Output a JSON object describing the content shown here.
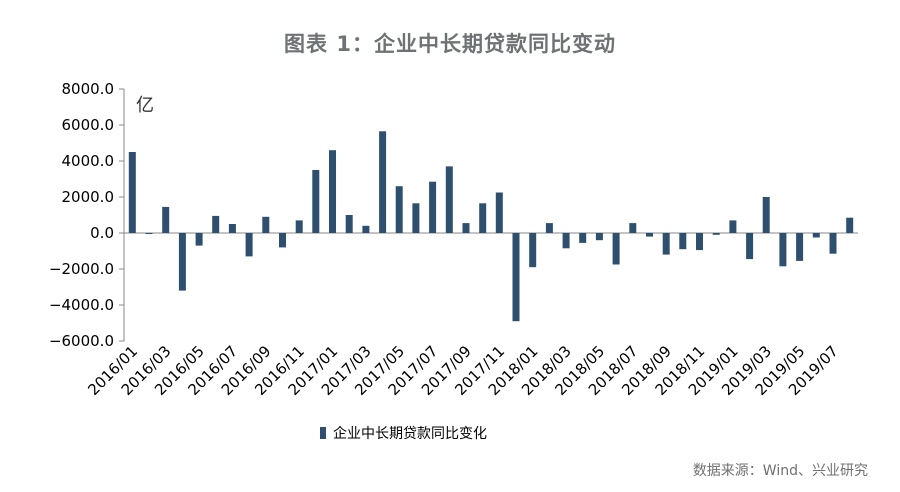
{
  "header": {
    "title": "图表 1：企业中长期贷款同比变动"
  },
  "footer": {
    "source": "数据来源：Wind、兴业研究"
  },
  "colors": {
    "bar": "#2f4f6e",
    "axis": "#888888",
    "text": "#000000"
  },
  "chart_data": {
    "type": "bar",
    "title": "图表 1：企业中长期贷款同比变动",
    "unit_label": "亿",
    "ylim": [
      -6000,
      8000
    ],
    "yticks": [
      8000,
      6000,
      4000,
      2000,
      0,
      -2000,
      -4000,
      -6000
    ],
    "ytick_labels": [
      "8000.0",
      "6000.0",
      "4000.0",
      "2000.0",
      "0.0",
      "−2000.0",
      "−4000.0",
      "−6000.0"
    ],
    "legend": {
      "position": "bottom-left",
      "label": "企业中长期贷款同比变化"
    },
    "categories": [
      "2016/01",
      "2016/02",
      "2016/03",
      "2016/04",
      "2016/05",
      "2016/06",
      "2016/07",
      "2016/08",
      "2016/09",
      "2016/10",
      "2016/11",
      "2016/12",
      "2017/01",
      "2017/02",
      "2017/03",
      "2017/04",
      "2017/05",
      "2017/06",
      "2017/07",
      "2017/08",
      "2017/09",
      "2017/10",
      "2017/11",
      "2017/12",
      "2018/01",
      "2018/02",
      "2018/03",
      "2018/04",
      "2018/05",
      "2018/06",
      "2018/07",
      "2018/08",
      "2018/09",
      "2018/10",
      "2018/11",
      "2018/12",
      "2019/01",
      "2019/02",
      "2019/03",
      "2019/04",
      "2019/05",
      "2019/06",
      "2019/07",
      "2019/08"
    ],
    "xtick_labels": [
      "2016/01",
      "2016/03",
      "2016/05",
      "2016/07",
      "2016/09",
      "2016/11",
      "2017/01",
      "2017/03",
      "2017/05",
      "2017/07",
      "2017/09",
      "2017/11",
      "2018/01",
      "2018/03",
      "2018/05",
      "2018/07",
      "2018/09",
      "2018/11",
      "2019/01",
      "2019/03",
      "2019/05",
      "2019/07"
    ],
    "series": [
      {
        "name": "企业中长期贷款同比变化",
        "values": [
          4500,
          -50,
          1450,
          -3200,
          -700,
          950,
          500,
          -1300,
          900,
          -800,
          700,
          3500,
          4600,
          1000,
          400,
          5650,
          2600,
          1650,
          2850,
          3700,
          550,
          1650,
          2250,
          -4900,
          -1900,
          550,
          -850,
          -550,
          -400,
          -1750,
          550,
          -200,
          -1200,
          -900,
          -950,
          -100,
          700,
          -1450,
          2000,
          -1850,
          -1550,
          -250,
          -1150,
          850
        ]
      }
    ]
  }
}
